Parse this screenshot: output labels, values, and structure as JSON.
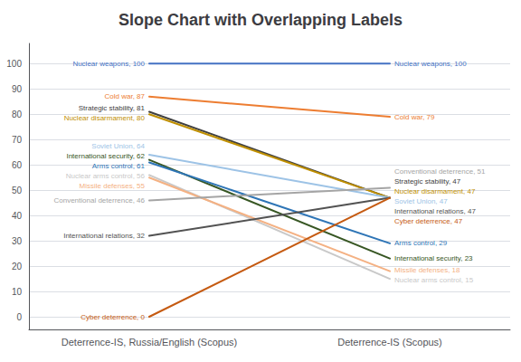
{
  "chart_data": {
    "type": "slope",
    "title": "Slope Chart with Overlapping Labels",
    "categories": [
      "Deterrence-IS, Russia/English (Scopus)",
      "Deterrence-IS (Scopus)"
    ],
    "series": [
      {
        "name": "Nuclear weapons",
        "color": "#4472C4",
        "values": [
          100,
          100
        ],
        "value_labels": [
          "Nuclear weapons, 100",
          "Nuclear weapons, 100"
        ]
      },
      {
        "name": "Cold war",
        "color": "#ED7D31",
        "values": [
          87,
          79
        ],
        "value_labels": [
          "Cold war, 87",
          "Cold war, 79"
        ]
      },
      {
        "name": "Strategic stability",
        "color": "#404040",
        "values": [
          81,
          47
        ],
        "value_labels": [
          "Strategic stability, 81",
          "Strategic stability, 47"
        ]
      },
      {
        "name": "Nuclear disarmament",
        "color": "#BF8F00",
        "values": [
          80,
          47
        ],
        "value_labels": [
          "Nuclear disarmament, 80",
          "Nuclear disarmament, 47"
        ]
      },
      {
        "name": "Soviet Union",
        "color": "#9DC3E6",
        "values": [
          64,
          47
        ],
        "value_labels": [
          "Soviet Union, 64",
          "Soviet Union, 47"
        ]
      },
      {
        "name": "International security",
        "color": "#375623",
        "values": [
          62,
          23
        ],
        "value_labels": [
          "International security, 62",
          "International security, 23"
        ]
      },
      {
        "name": "Arms control",
        "color": "#2E75B6",
        "values": [
          61,
          29
        ],
        "value_labels": [
          "Arms control, 61",
          "Arms control, 29"
        ]
      },
      {
        "name": "Nuclear arms control",
        "color": "#C9C9C9",
        "values": [
          56,
          15
        ],
        "value_labels": [
          "Nuclear arms control, 56",
          "Nuclear arms control, 15"
        ]
      },
      {
        "name": "Missile defenses",
        "color": "#F4B183",
        "values": [
          55,
          18
        ],
        "value_labels": [
          "Missile defenses, 55",
          "Missile defenses, 18"
        ]
      },
      {
        "name": "Conventional deterrence",
        "color": "#A5A5A5",
        "values": [
          46,
          51
        ],
        "value_labels": [
          "Conventional deterrence, 46",
          "Conventional deterrence, 51"
        ]
      },
      {
        "name": "International relations",
        "color": "#525252",
        "values": [
          32,
          47
        ],
        "value_labels": [
          "International relations, 32",
          "International relations, 47"
        ]
      },
      {
        "name": "Cyber deterrence",
        "color": "#C55A11",
        "values": [
          0,
          47
        ],
        "value_labels": [
          "Cyber deterrence, 0",
          "Cyber deterrence, 47"
        ]
      }
    ],
    "ylim": [
      -5,
      108
    ],
    "yticks": [
      0,
      10,
      20,
      30,
      40,
      50,
      60,
      70,
      80,
      90,
      100
    ],
    "grid": true,
    "data_labels": true
  }
}
